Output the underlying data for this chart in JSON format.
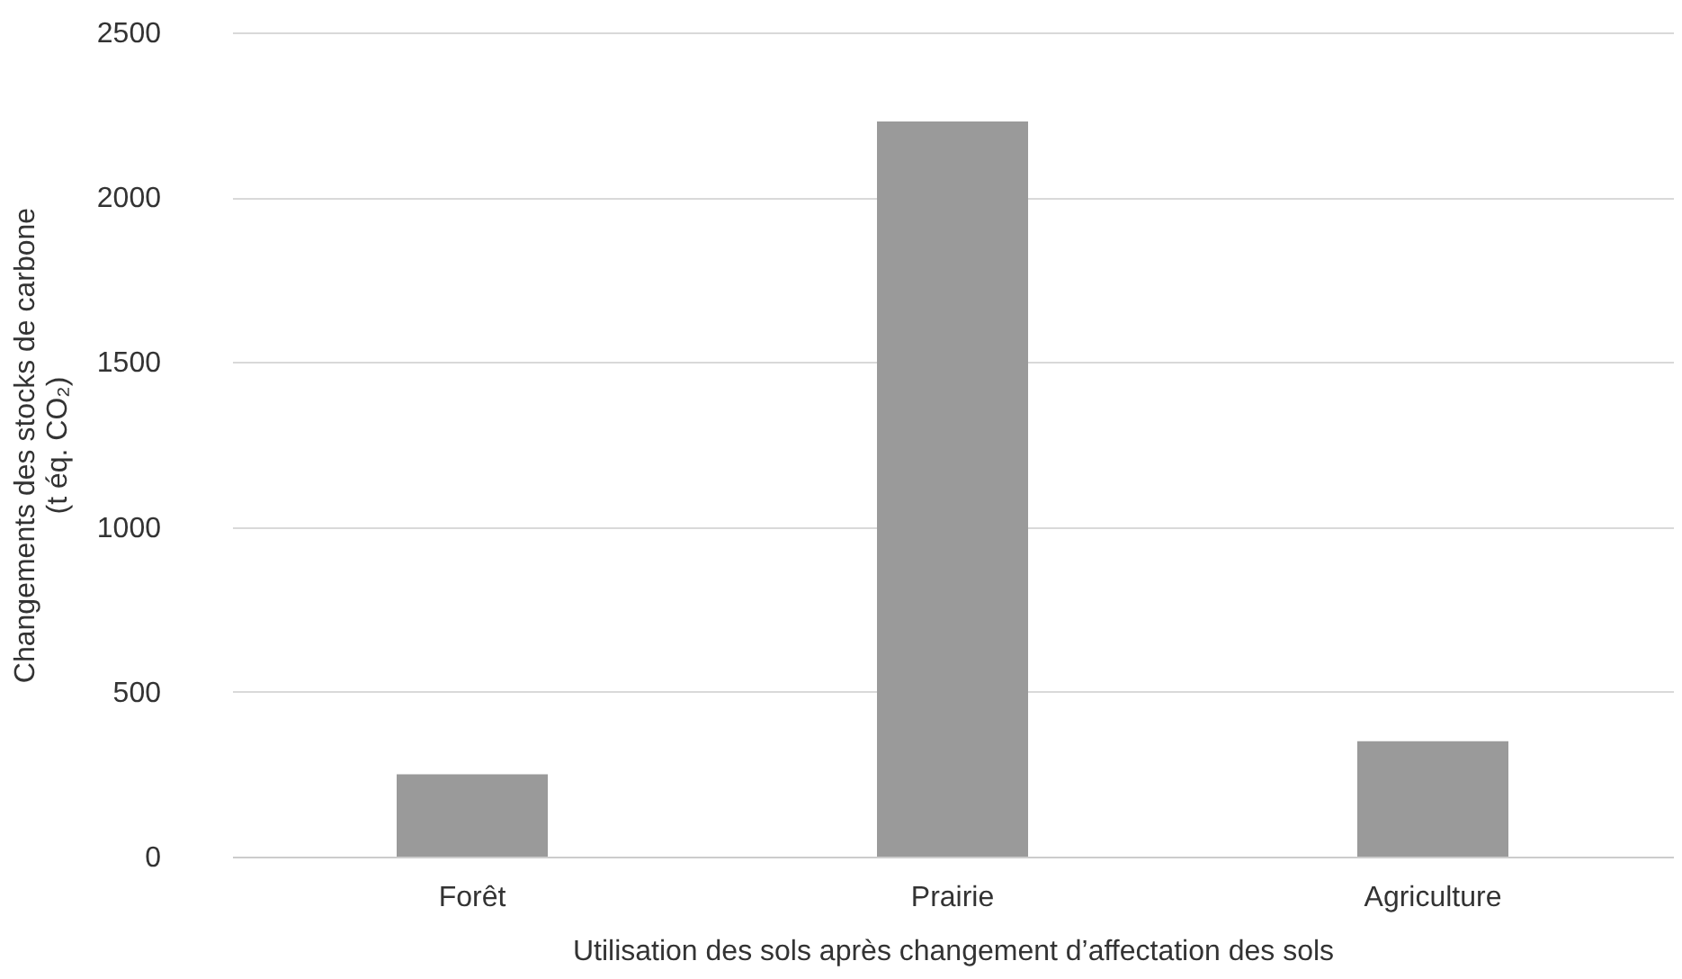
{
  "chart_data": {
    "type": "bar",
    "xlabel": "Utilisation des sols après changement d’affectation des sols",
    "ylabel": "Changements des stocks de carbone\n(t éq. CO₂)",
    "categories": [
      "Forêt",
      "Prairie",
      "Agriculture"
    ],
    "values": [
      250,
      2230,
      350
    ],
    "color": "#9a9a9a",
    "ylim": [
      0,
      2500
    ],
    "yticks": [
      0,
      500,
      1000,
      1500,
      2000,
      2500
    ],
    "grid": "y"
  }
}
